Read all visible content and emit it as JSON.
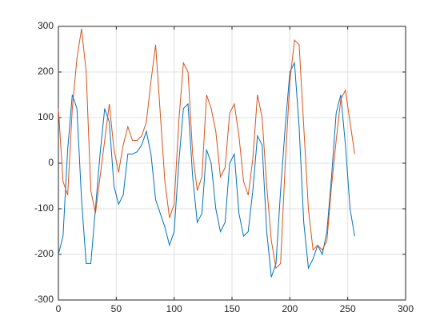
{
  "chart_data": {
    "type": "line",
    "x": [
      0,
      4,
      8,
      12,
      16,
      20,
      24,
      28,
      32,
      36,
      40,
      44,
      48,
      52,
      56,
      60,
      64,
      68,
      72,
      76,
      80,
      84,
      88,
      92,
      96,
      100,
      104,
      108,
      112,
      116,
      120,
      124,
      128,
      132,
      136,
      140,
      144,
      148,
      152,
      156,
      160,
      164,
      168,
      172,
      176,
      180,
      184,
      188,
      192,
      196,
      200,
      204,
      208,
      212,
      216,
      220,
      224,
      228,
      232,
      236,
      240,
      244,
      248,
      252,
      256
    ],
    "series": [
      {
        "color": "#0072BD",
        "values": [
          -200,
          -160,
          30,
          150,
          120,
          -80,
          -220,
          -220,
          -100,
          20,
          120,
          90,
          -50,
          -90,
          -70,
          20,
          20,
          25,
          40,
          70,
          20,
          -80,
          -110,
          -140,
          -180,
          -150,
          0,
          120,
          130,
          -30,
          -130,
          -110,
          30,
          0,
          -100,
          -150,
          -130,
          0,
          20,
          -110,
          -160,
          -150,
          -60,
          60,
          40,
          -150,
          -250,
          -220,
          -60,
          80,
          200,
          220,
          80,
          -130,
          -230,
          -210,
          -180,
          -200,
          -150,
          -30,
          110,
          150,
          40,
          -100,
          -160
        ]
      },
      {
        "color": "#D95319",
        "values": [
          120,
          -40,
          -70,
          120,
          230,
          295,
          200,
          -60,
          -110,
          -30,
          50,
          130,
          30,
          -20,
          40,
          80,
          50,
          50,
          60,
          90,
          180,
          260,
          110,
          -40,
          -120,
          -90,
          90,
          220,
          200,
          20,
          -60,
          -30,
          150,
          120,
          70,
          -30,
          -10,
          110,
          130,
          60,
          -40,
          -70,
          10,
          150,
          100,
          -50,
          -170,
          -230,
          -220,
          0,
          180,
          270,
          260,
          80,
          -100,
          -190,
          -180,
          -190,
          -170,
          -50,
          50,
          140,
          160,
          90,
          20
        ]
      }
    ],
    "xlim": [
      0,
      300
    ],
    "xticks": [
      0,
      50,
      100,
      150,
      200,
      250,
      300
    ],
    "ylim": [
      -300,
      300
    ],
    "yticks": [
      -300,
      -200,
      -100,
      0,
      100,
      200,
      300
    ],
    "grid": true
  }
}
